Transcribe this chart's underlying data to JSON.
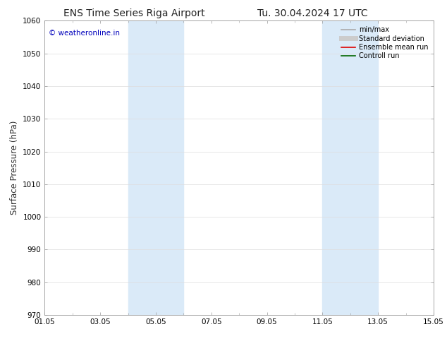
{
  "title_left": "ENS Time Series Riga Airport",
  "title_right": "Tu. 30.04.2024 17 UTC",
  "ylabel": "Surface Pressure (hPa)",
  "ylim": [
    970,
    1060
  ],
  "yticks": [
    970,
    980,
    990,
    1000,
    1010,
    1020,
    1030,
    1040,
    1050,
    1060
  ],
  "xstart_day": 1,
  "xend_day": 15,
  "xtick_days": [
    1,
    3,
    5,
    7,
    9,
    11,
    13,
    15
  ],
  "xtick_labels": [
    "01.05",
    "03.05",
    "05.05",
    "07.05",
    "09.05",
    "11.05",
    "13.05",
    "15.05"
  ],
  "shaded_bands": [
    {
      "x_start": 4.0,
      "x_end": 5.0,
      "color": "#daeaf8"
    },
    {
      "x_start": 5.0,
      "x_end": 6.0,
      "color": "#daeaf8"
    },
    {
      "x_start": 11.0,
      "x_end": 12.0,
      "color": "#daeaf8"
    },
    {
      "x_start": 12.0,
      "x_end": 13.0,
      "color": "#daeaf8"
    }
  ],
  "watermark_text": "© weatheronline.in",
  "watermark_color": "#0000bb",
  "background_color": "#ffffff",
  "grid_color": "#dddddd",
  "spine_color": "#999999",
  "legend_items": [
    {
      "label": "min/max",
      "color": "#aaaaaa",
      "lw": 1.2,
      "ls": "-"
    },
    {
      "label": "Standard deviation",
      "color": "#cccccc",
      "lw": 5,
      "ls": "-"
    },
    {
      "label": "Ensemble mean run",
      "color": "#dd0000",
      "lw": 1.2,
      "ls": "-"
    },
    {
      "label": "Controll run",
      "color": "#006600",
      "lw": 1.2,
      "ls": "-"
    }
  ],
  "title_fontsize": 10,
  "tick_fontsize": 7.5,
  "ylabel_fontsize": 8.5,
  "legend_fontsize": 7,
  "watermark_fontsize": 7.5
}
